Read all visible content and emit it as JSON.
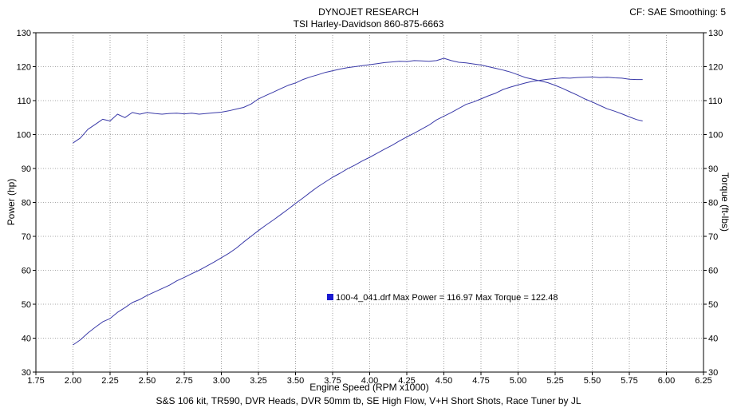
{
  "header": {
    "line1": "DYNOJET RESEARCH",
    "line2": "TSI Harley-Davidson 860-875-6663",
    "cf": "CF: SAE  Smoothing: 5"
  },
  "footer": "S&S 106 kit, TR590, DVR Heads, DVR 50mm tb, SE High Flow, V+H Short Shots, Race Tuner by JL",
  "colors": {
    "series": "#3a3aa8",
    "marker": "#1a1ad0",
    "grid": "#8a8a8a"
  },
  "chart_data": {
    "type": "line",
    "xlabel": "Engine Speed (RPM x1000)",
    "ylabel": "Power (hp)",
    "y2label": "Torque (ft-lbs)",
    "xlim": [
      1.75,
      6.25
    ],
    "ylim": [
      30,
      130
    ],
    "y2lim": [
      30,
      130
    ],
    "xticks": [
      "1.75",
      "2.00",
      "2.25",
      "2.50",
      "2.75",
      "3.00",
      "3.25",
      "3.50",
      "3.75",
      "4.00",
      "4.25",
      "4.50",
      "4.75",
      "5.00",
      "5.25",
      "5.50",
      "5.75",
      "6.00",
      "6.25"
    ],
    "yticks": [
      "30",
      "40",
      "50",
      "60",
      "70",
      "80",
      "90",
      "100",
      "110",
      "120",
      "130"
    ],
    "grid": true,
    "legend": {
      "text": "100-4_041.drf Max Power = 116.97     Max Torque = 122.48"
    },
    "series": [
      {
        "axis": "left",
        "x": [
          2.0,
          2.05,
          2.1,
          2.15,
          2.2,
          2.25,
          2.3,
          2.35,
          2.4,
          2.45,
          2.5,
          2.55,
          2.6,
          2.65,
          2.7,
          2.75,
          2.8,
          2.85,
          2.9,
          2.95,
          3.0,
          3.05,
          3.1,
          3.15,
          3.2,
          3.25,
          3.3,
          3.35,
          3.4,
          3.45,
          3.5,
          3.55,
          3.6,
          3.65,
          3.7,
          3.75,
          3.8,
          3.85,
          3.9,
          3.95,
          4.0,
          4.05,
          4.1,
          4.15,
          4.2,
          4.25,
          4.3,
          4.35,
          4.4,
          4.45,
          4.5,
          4.55,
          4.6,
          4.65,
          4.7,
          4.75,
          4.8,
          4.85,
          4.9,
          4.95,
          5.0,
          5.05,
          5.1,
          5.15,
          5.2,
          5.25,
          5.3,
          5.35,
          5.4,
          5.45,
          5.5,
          5.55,
          5.6,
          5.65,
          5.7,
          5.75,
          5.8,
          5.84
        ],
        "values": [
          38,
          39.5,
          41.5,
          43.2,
          44.8,
          45.8,
          47.6,
          49,
          50.5,
          51.4,
          52.6,
          53.6,
          54.6,
          55.6,
          56.9,
          57.9,
          59,
          60,
          61.2,
          62.4,
          63.7,
          65,
          66.5,
          68.3,
          70,
          71.7,
          73.3,
          74.8,
          76.4,
          78,
          79.7,
          81.3,
          83,
          84.6,
          86,
          87.4,
          88.6,
          89.9,
          91,
          92.2,
          93.3,
          94.5,
          95.7,
          96.8,
          98.1,
          99.3,
          100.4,
          101.6,
          102.8,
          104.3,
          105.4,
          106.5,
          107.7,
          108.9,
          109.6,
          110.5,
          111.4,
          112.2,
          113.3,
          114,
          114.6,
          115.2,
          115.7,
          116,
          116.3,
          116.5,
          116.7,
          116.6,
          116.8,
          116.9,
          116.97,
          116.8,
          116.9,
          116.7,
          116.6,
          116.3,
          116.2,
          116.2
        ]
      },
      {
        "axis": "right",
        "x": [
          2.0,
          2.05,
          2.1,
          2.15,
          2.2,
          2.25,
          2.3,
          2.35,
          2.4,
          2.45,
          2.5,
          2.55,
          2.6,
          2.65,
          2.7,
          2.75,
          2.8,
          2.85,
          2.9,
          2.95,
          3.0,
          3.05,
          3.1,
          3.15,
          3.2,
          3.25,
          3.3,
          3.35,
          3.4,
          3.45,
          3.5,
          3.55,
          3.6,
          3.65,
          3.7,
          3.75,
          3.8,
          3.85,
          3.9,
          3.95,
          4.0,
          4.05,
          4.1,
          4.15,
          4.2,
          4.25,
          4.3,
          4.35,
          4.4,
          4.45,
          4.5,
          4.55,
          4.6,
          4.65,
          4.7,
          4.75,
          4.8,
          4.85,
          4.9,
          4.95,
          5.0,
          5.05,
          5.1,
          5.15,
          5.2,
          5.25,
          5.3,
          5.35,
          5.4,
          5.45,
          5.5,
          5.55,
          5.6,
          5.65,
          5.7,
          5.75,
          5.8,
          5.84
        ],
        "values": [
          97.5,
          99,
          101.5,
          103,
          104.5,
          104,
          106,
          105,
          106.5,
          106,
          106.5,
          106.2,
          106,
          106.2,
          106.3,
          106.1,
          106.3,
          106,
          106.2,
          106.4,
          106.6,
          107,
          107.5,
          108,
          109,
          110.5,
          111.5,
          112.5,
          113.5,
          114.5,
          115.2,
          116.2,
          117,
          117.6,
          118.3,
          118.8,
          119.3,
          119.7,
          120,
          120.3,
          120.6,
          120.9,
          121.2,
          121.4,
          121.6,
          121.5,
          121.8,
          121.7,
          121.6,
          121.8,
          122.48,
          121.8,
          121.3,
          121.1,
          120.8,
          120.5,
          120,
          119.5,
          119,
          118.4,
          117.6,
          116.8,
          116.3,
          115.8,
          115.3,
          114.5,
          113.6,
          112.6,
          111.6,
          110.5,
          109.6,
          108.6,
          107.6,
          106.9,
          106.1,
          105.2,
          104.4,
          104
        ]
      }
    ]
  }
}
